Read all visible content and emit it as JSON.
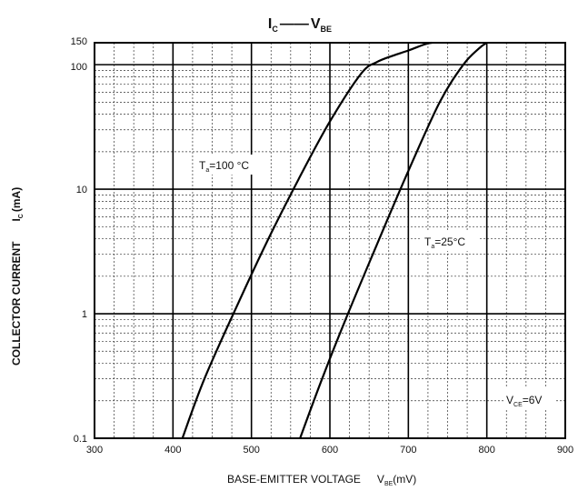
{
  "chart_data": {
    "type": "line",
    "title": {
      "main": "I",
      "main_sub": "C",
      "dash": "——",
      "second": "V",
      "second_sub": "BE"
    },
    "xlabel": {
      "main": "BASE-EMITTER VOLTAGE",
      "sym": "V",
      "sym_sub": "BE",
      "unit": "(mV)"
    },
    "ylabel": {
      "main": "COLLECTOR CURRENT",
      "sym": "I",
      "sym_sub": "C",
      "unit": "(mA)"
    },
    "xlim": [
      300,
      900
    ],
    "ylim": [
      0.1,
      150
    ],
    "yscale": "log",
    "grid": true,
    "xticks": [
      300,
      400,
      500,
      600,
      700,
      800,
      900
    ],
    "xtick_labels": [
      "300",
      "400",
      "500",
      "600",
      "700",
      "800",
      "900"
    ],
    "yticks": [
      0.1,
      1,
      10,
      100,
      150
    ],
    "ytick_labels": [
      "0.1",
      "1",
      "10",
      "100",
      "150"
    ],
    "series": [
      {
        "name": "Ta=100°C",
        "x": [
          412,
          440,
          480,
          520,
          560,
          600,
          640,
          660,
          680,
          700,
          720,
          730
        ],
        "y": [
          0.1,
          0.3,
          1.1,
          3.8,
          12,
          35,
          85,
          105,
          118,
          130,
          145,
          150
        ]
      },
      {
        "name": "Ta=25°C",
        "x": [
          562,
          590,
          620,
          660,
          700,
          740,
          770,
          790,
          800
        ],
        "y": [
          0.1,
          0.3,
          0.9,
          3.6,
          14,
          50,
          100,
          135,
          150
        ]
      }
    ],
    "annotations": [
      {
        "sym": "T",
        "sub": "a",
        "text": "=100 °C"
      },
      {
        "sym": "T",
        "sub": "a",
        "text": "=25°C"
      },
      {
        "sym": "V",
        "sub": "CE",
        "text": "=6V"
      }
    ]
  }
}
